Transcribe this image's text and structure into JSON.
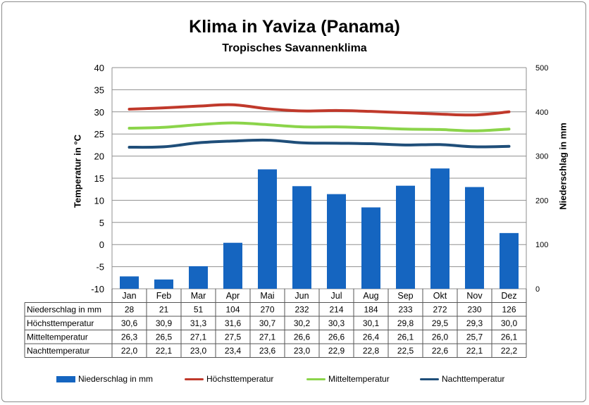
{
  "chart_data": {
    "type": "bar+line",
    "title": "Klima in Yaviza (Panama)",
    "subtitle": "Tropisches Savannenklima",
    "ylabel_left": "Temperatur in °C",
    "ylabel_right": "Niederschlag in mm",
    "ylim_left": [
      -10,
      40
    ],
    "yticks_left": [
      -10,
      -5,
      0,
      5,
      10,
      15,
      20,
      25,
      30,
      35,
      40
    ],
    "ylim_right": [
      0,
      500
    ],
    "yticks_right": [
      0,
      100,
      200,
      300,
      400,
      500
    ],
    "grid": true,
    "legend_position": "bottom",
    "categories": [
      "Jan",
      "Feb",
      "Mar",
      "Apr",
      "Mai",
      "Jun",
      "Jul",
      "Aug",
      "Sep",
      "Okt",
      "Nov",
      "Dez"
    ],
    "series": [
      {
        "name": "Niederschlag in mm",
        "type": "bar",
        "axis": "right",
        "color": "#1565c0",
        "values": [
          28,
          21,
          51,
          104,
          270,
          232,
          214,
          184,
          233,
          272,
          230,
          126
        ],
        "labels": [
          "28",
          "21",
          "51",
          "104",
          "270",
          "232",
          "214",
          "184",
          "233",
          "272",
          "230",
          "126"
        ]
      },
      {
        "name": "Höchsttemperatur",
        "type": "line",
        "axis": "left",
        "color": "#c0392b",
        "values": [
          30.6,
          30.9,
          31.3,
          31.6,
          30.7,
          30.2,
          30.3,
          30.1,
          29.8,
          29.5,
          29.3,
          30.0
        ],
        "labels": [
          "30,6",
          "30,9",
          "31,3",
          "31,6",
          "30,7",
          "30,2",
          "30,3",
          "30,1",
          "29,8",
          "29,5",
          "29,3",
          "30,0"
        ]
      },
      {
        "name": "Mitteltemperatur",
        "type": "line",
        "axis": "left",
        "color": "#8bd44a",
        "values": [
          26.3,
          26.5,
          27.1,
          27.5,
          27.1,
          26.6,
          26.6,
          26.4,
          26.1,
          26.0,
          25.7,
          26.1
        ],
        "labels": [
          "26,3",
          "26,5",
          "27,1",
          "27,5",
          "27,1",
          "26,6",
          "26,6",
          "26,4",
          "26,1",
          "26,0",
          "25,7",
          "26,1"
        ]
      },
      {
        "name": "Nachttemperatur",
        "type": "line",
        "axis": "left",
        "color": "#1f4e79",
        "values": [
          22.0,
          22.1,
          23.0,
          23.4,
          23.6,
          23.0,
          22.9,
          22.8,
          22.5,
          22.6,
          22.1,
          22.2
        ],
        "labels": [
          "22,0",
          "22,1",
          "23,0",
          "23,4",
          "23,6",
          "23,0",
          "22,9",
          "22,8",
          "22,5",
          "22,6",
          "22,1",
          "22,2"
        ]
      }
    ]
  }
}
